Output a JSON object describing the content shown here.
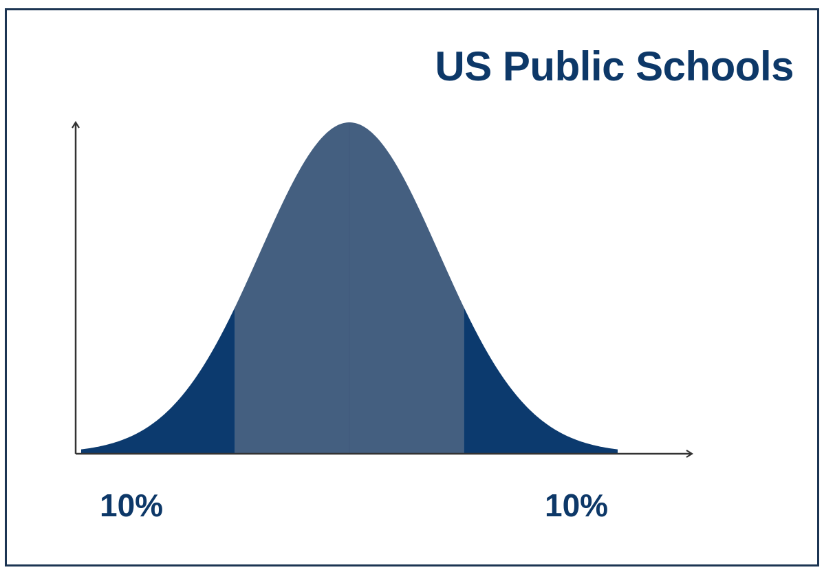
{
  "chart_data": {
    "type": "area",
    "title": "US Public Schools",
    "distribution": "normal",
    "xlabel": "",
    "ylabel": "",
    "grid": false,
    "regions": [
      {
        "label": "10%",
        "percent": 10,
        "range": "left tail"
      },
      {
        "label": "",
        "percent": 80,
        "range": "middle"
      },
      {
        "label": "10%",
        "percent": 10,
        "range": "right tail"
      }
    ],
    "colors": {
      "tail": "#0c3a6e",
      "middle": "#445f80",
      "axis": "#333333",
      "text": "#0d3868",
      "frame": "#1c3553"
    }
  }
}
